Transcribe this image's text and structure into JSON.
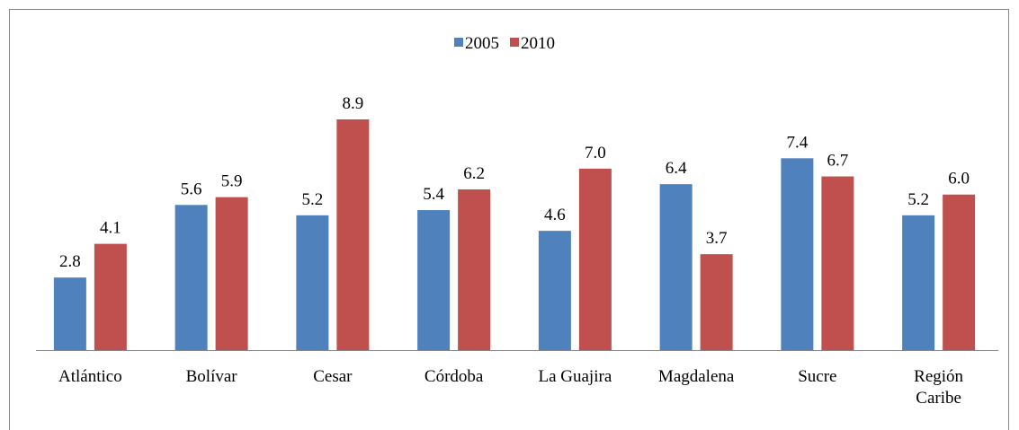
{
  "chart_data": {
    "type": "bar",
    "categories": [
      "Atlántico",
      "Bolívar",
      "Cesar",
      "Córdoba",
      "La Guajira",
      "Magdalena",
      "Sucre",
      "Región Caribe"
    ],
    "series": [
      {
        "name": "2005",
        "color": "#4f81bd",
        "values": [
          2.8,
          5.6,
          5.2,
          5.4,
          4.6,
          6.4,
          7.4,
          5.2
        ],
        "value_labels": [
          "2.8",
          "5.6",
          "5.2",
          "5.4",
          "4.6",
          "6.4",
          "7.4",
          "5.2"
        ]
      },
      {
        "name": "2010",
        "color": "#c0504d",
        "values": [
          4.1,
          5.9,
          8.9,
          6.2,
          7.0,
          3.7,
          6.7,
          6.0
        ],
        "value_labels": [
          "4.1",
          "5.9",
          "8.9",
          "6.2",
          "7.0",
          "3.7",
          "6.7",
          "6.0"
        ]
      }
    ],
    "legend": "top"
  }
}
